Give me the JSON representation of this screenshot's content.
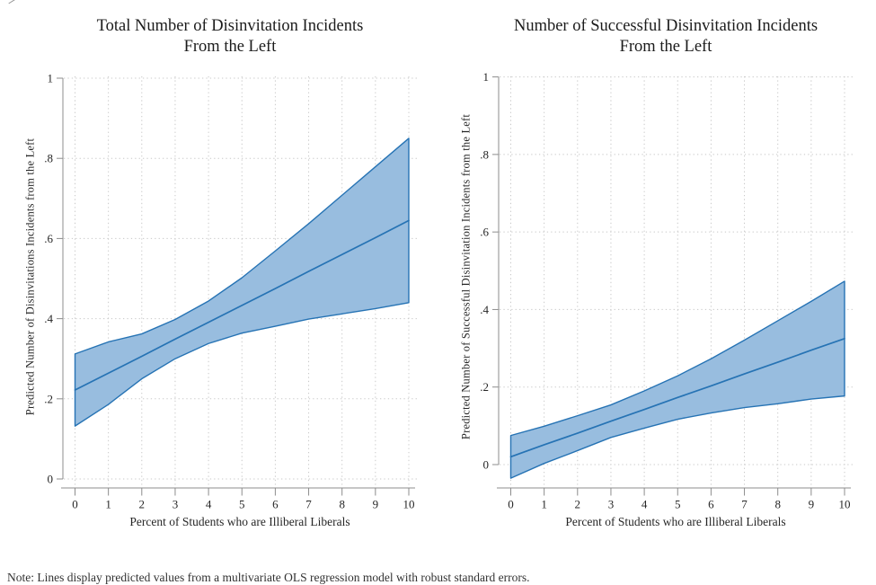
{
  "note": "Note: Lines display predicted values from a multivariate OLS regression model with robust standard errors.",
  "colors": {
    "band_fill": "#98bddf",
    "band_stroke": "#2673b4",
    "fit_line": "#2673b4",
    "grid": "#c8c8c8",
    "axis": "#8c8c8c",
    "tick_text": "#262626"
  },
  "chart_data": [
    {
      "type": "area",
      "title_lines": [
        "Total Number of Disinvitation Incidents",
        "From the Left"
      ],
      "xlabel": "Percent of Students who are Illiberal Liberals",
      "ylabel": "Predicted Number of Disinvitations Incidents from the Left",
      "x": [
        0,
        1,
        2,
        3,
        4,
        5,
        6,
        7,
        8,
        9,
        10
      ],
      "series": [
        {
          "name": "Predicted value",
          "values": [
            0.222,
            0.264,
            0.306,
            0.349,
            0.391,
            0.433,
            0.475,
            0.518,
            0.56,
            0.602,
            0.645
          ]
        },
        {
          "name": "CI upper",
          "values": [
            0.312,
            0.342,
            0.362,
            0.398,
            0.444,
            0.502,
            0.569,
            0.637,
            0.708,
            0.779,
            0.85
          ]
        },
        {
          "name": "CI lower",
          "values": [
            0.132,
            0.186,
            0.25,
            0.3,
            0.338,
            0.364,
            0.381,
            0.399,
            0.412,
            0.425,
            0.44
          ]
        }
      ],
      "xticks": [
        "0",
        "1",
        "2",
        "3",
        "4",
        "5",
        "6",
        "7",
        "8",
        "9",
        "10"
      ],
      "yticks": [
        {
          "v": 0,
          "label": "0"
        },
        {
          "v": 0.2,
          "label": ".2"
        },
        {
          "v": 0.4,
          "label": ".4"
        },
        {
          "v": 0.6,
          "label": ".6"
        },
        {
          "v": 0.8,
          "label": ".8"
        },
        {
          "v": 1,
          "label": "1"
        }
      ],
      "xlim": [
        -0.36,
        10.24
      ],
      "ylim": [
        -0.0224,
        1.0045
      ],
      "grid": true,
      "legend": "none"
    },
    {
      "type": "area",
      "title_lines": [
        "Number of Successful Disinvitation Incidents",
        "From the Left"
      ],
      "xlabel": "Percent of Students who are Illiberal Liberals",
      "ylabel": "Predicted Number of Successful Disinvitation Incidents from the Left",
      "x": [
        0,
        1,
        2,
        3,
        4,
        5,
        6,
        7,
        8,
        9,
        10
      ],
      "series": [
        {
          "name": "Predicted value",
          "values": [
            0.02,
            0.051,
            0.081,
            0.112,
            0.142,
            0.173,
            0.203,
            0.234,
            0.264,
            0.295,
            0.325
          ]
        },
        {
          "name": "CI upper",
          "values": [
            0.075,
            0.099,
            0.126,
            0.154,
            0.19,
            0.229,
            0.273,
            0.321,
            0.371,
            0.421,
            0.473
          ]
        },
        {
          "name": "CI lower",
          "values": [
            -0.035,
            0.003,
            0.036,
            0.07,
            0.094,
            0.117,
            0.133,
            0.147,
            0.157,
            0.169,
            0.177
          ]
        }
      ],
      "xticks": [
        "0",
        "1",
        "2",
        "3",
        "4",
        "5",
        "6",
        "7",
        "8",
        "9",
        "10"
      ],
      "yticks": [
        {
          "v": 0,
          "label": "0"
        },
        {
          "v": 0.2,
          "label": ".2"
        },
        {
          "v": 0.4,
          "label": ".4"
        },
        {
          "v": 0.6,
          "label": ".6"
        },
        {
          "v": 0.8,
          "label": ".8"
        },
        {
          "v": 1,
          "label": "1"
        }
      ],
      "xlim": [
        -0.36,
        10.24
      ],
      "ylim": [
        -0.0603,
        1.0014
      ],
      "grid": true,
      "legend": "none"
    }
  ]
}
